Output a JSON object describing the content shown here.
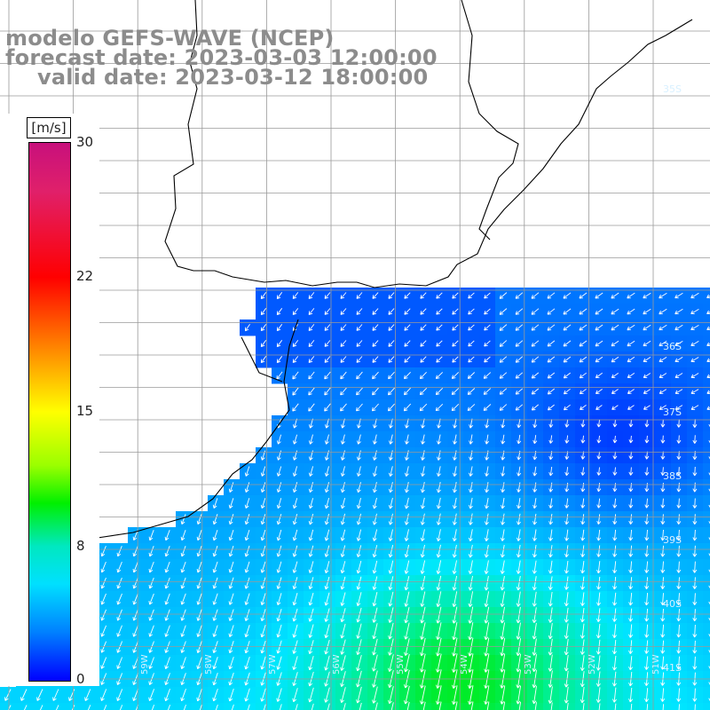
{
  "title": {
    "line1": "modelo GEFS-WAVE (NCEP)",
    "line2": "forecast date: 2023-03-03 12:00:00",
    "line3": "valid date: 2023-03-12 18:00:00"
  },
  "colorbar": {
    "units": "[m/s]",
    "ticks": [
      "30",
      "22",
      "15",
      "8",
      "0"
    ],
    "tick_values": [
      30,
      22,
      15,
      8,
      0
    ],
    "range": [
      0,
      30
    ],
    "colors": [
      "#c8107c",
      "#ff0000",
      "#ff7a00",
      "#ffff00",
      "#00f000",
      "#00e0ff",
      "#0000ff"
    ]
  },
  "map": {
    "lat_labels": [
      "35S",
      "36S",
      "37S",
      "38S",
      "39S",
      "40S",
      "41S"
    ],
    "lon_labels": [
      "59W",
      "58W",
      "57W",
      "56W",
      "55W",
      "54W",
      "53W",
      "52W",
      "51W"
    ],
    "colors": {
      "land": "#ffffff",
      "coast": "#000000",
      "grid": "#9a9a9a",
      "arrow": "#ffffff"
    }
  }
}
